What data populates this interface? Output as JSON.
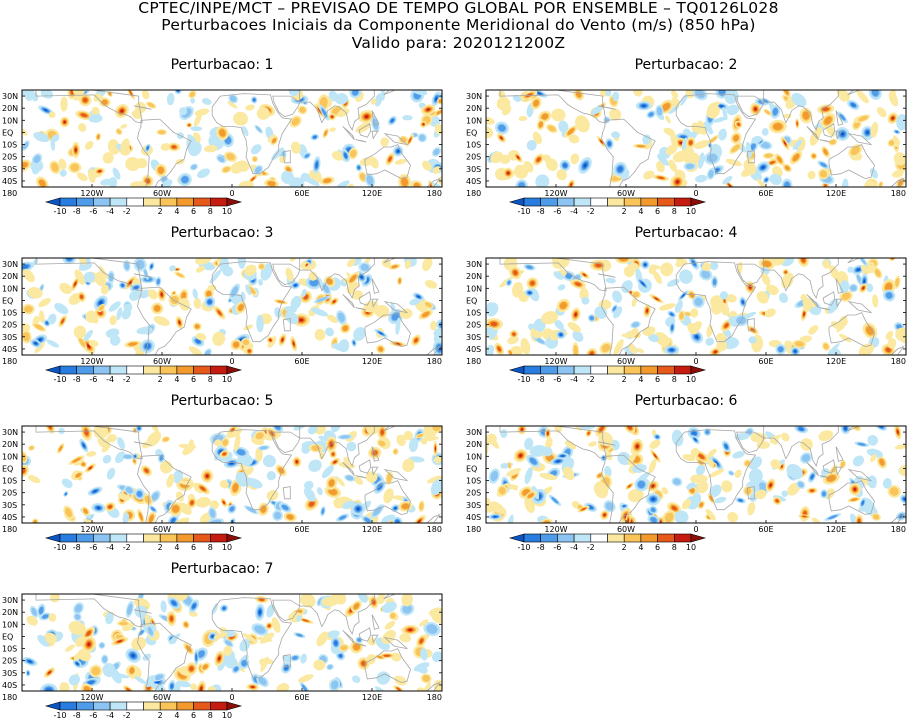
{
  "header": {
    "line1": "CPTEC/INPE/MCT – PREVISAO DE TEMPO GLOBAL POR ENSEMBLE – TQ0126L028",
    "line2": "Perturbacoes Iniciais da Componente Meridional do Vento (m/s) (850 hPa)",
    "line3": "Valido para: 2020121200Z"
  },
  "map_axes": {
    "lat_labels": [
      "30N",
      "20N",
      "10N",
      "EQ",
      "10S",
      "20S",
      "30S",
      "40S"
    ],
    "lon_labels": [
      "180",
      "120W",
      "60W",
      "0",
      "60E",
      "120E",
      "180"
    ]
  },
  "colorbar": {
    "labels": [
      "-10",
      "-8",
      "-6",
      "-4",
      "-2",
      "2",
      "4",
      "6",
      "8",
      "10"
    ],
    "colors": [
      "#0b55c5",
      "#2a7de0",
      "#4f9cea",
      "#8cc4f2",
      "#bfe6f7",
      "#ffffff",
      "#fbe9a1",
      "#f9c55b",
      "#f39a2e",
      "#e5591b",
      "#c61b10",
      "#8a0f07"
    ]
  },
  "panels": [
    {
      "title": "Perturbacao: 1"
    },
    {
      "title": "Perturbacao: 2"
    },
    {
      "title": "Perturbacao: 3"
    },
    {
      "title": "Perturbacao: 4"
    },
    {
      "title": "Perturbacao: 5"
    },
    {
      "title": "Perturbacao: 6"
    },
    {
      "title": "Perturbacao: 7"
    }
  ]
}
